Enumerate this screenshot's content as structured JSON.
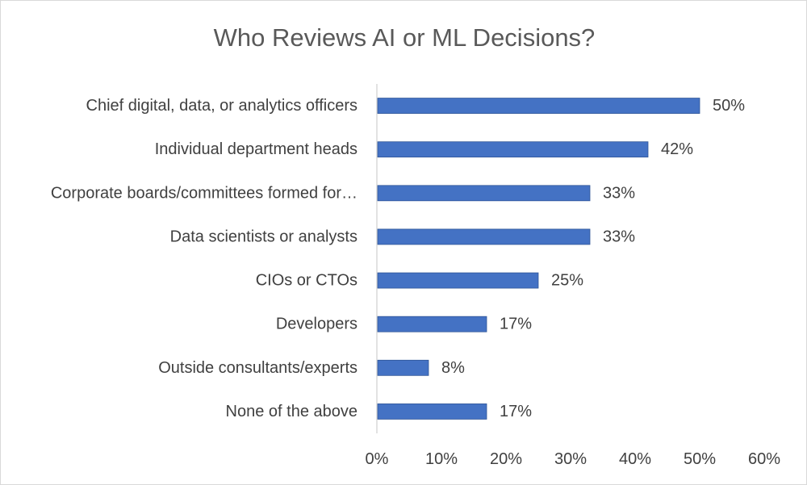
{
  "chart_data": {
    "type": "bar",
    "orientation": "horizontal",
    "title": "Who Reviews AI or ML Decisions?",
    "categories": [
      "Chief digital, data, or analytics officers",
      "Individual department heads",
      "Corporate boards/committees formed for…",
      "Data scientists or analysts",
      "CIOs or CTOs",
      "Developers",
      "Outside consultants/experts",
      "None of the above"
    ],
    "values": [
      50,
      42,
      33,
      33,
      25,
      17,
      8,
      17
    ],
    "data_labels": [
      "50%",
      "42%",
      "33%",
      "33%",
      "25%",
      "17%",
      "8%",
      "17%"
    ],
    "xlabel": "",
    "ylabel": "",
    "xlim": [
      0,
      60
    ],
    "x_ticks": [
      0,
      10,
      20,
      30,
      40,
      50,
      60
    ],
    "x_tick_labels": [
      "0%",
      "10%",
      "20%",
      "30%",
      "40%",
      "50%",
      "60%"
    ],
    "bar_color": "#4472C4",
    "grid": false,
    "legend": "none"
  }
}
